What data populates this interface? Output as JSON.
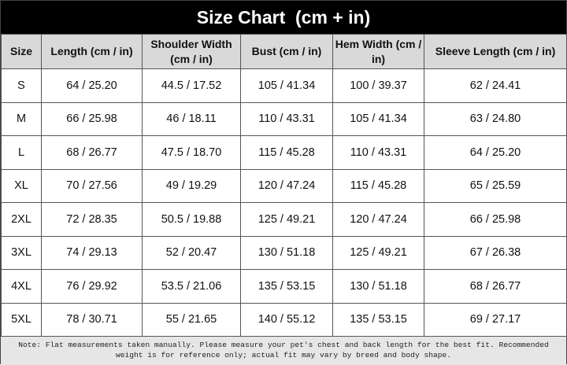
{
  "header": {
    "title": "Size Chart  (cm + in)"
  },
  "table": {
    "columns": [
      "Size",
      "Length (cm / in)",
      "Shoulder Width (cm / in)",
      "Bust (cm / in)",
      "Hem Width (cm / in)",
      "Sleeve Length (cm / in)"
    ],
    "rows": [
      [
        "S",
        "64 / 25.20",
        "44.5 / 17.52",
        "105 / 41.34",
        "100 / 39.37",
        "62 / 24.41"
      ],
      [
        "M",
        "66 / 25.98",
        "46 / 18.11",
        "110 / 43.31",
        "105 / 41.34",
        "63 / 24.80"
      ],
      [
        "L",
        "68 / 26.77",
        "47.5 / 18.70",
        "115 / 45.28",
        "110 / 43.31",
        "64 / 25.20"
      ],
      [
        "XL",
        "70 / 27.56",
        "49 / 19.29",
        "120 / 47.24",
        "115 / 45.28",
        "65 / 25.59"
      ],
      [
        "2XL",
        "72 / 28.35",
        "50.5 / 19.88",
        "125 / 49.21",
        "120 / 47.24",
        "66 / 25.98"
      ],
      [
        "3XL",
        "74 / 29.13",
        "52 / 20.47",
        "130 / 51.18",
        "125 / 49.21",
        "67 / 26.38"
      ],
      [
        "4XL",
        "76 / 29.92",
        "53.5 / 21.06",
        "135 / 53.15",
        "130 / 51.18",
        "68 / 26.77"
      ],
      [
        "5XL",
        "78 / 30.71",
        "55 / 21.65",
        "140 / 55.12",
        "135 / 53.15",
        "69 / 27.17"
      ]
    ]
  },
  "note": "Note: Flat measurements taken manually. Please measure your pet's chest and back length for the best fit. Recommended weight is for reference only; actual fit may vary by breed and body shape."
}
